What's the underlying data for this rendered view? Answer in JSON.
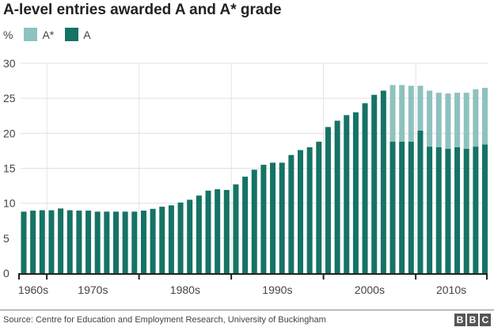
{
  "header": {
    "title": "A-level entries awarded A and A* grade"
  },
  "legend": {
    "unit": "%",
    "items": [
      {
        "label": "A*",
        "color": "#8ec2be"
      },
      {
        "label": "A",
        "color": "#157365"
      }
    ]
  },
  "footer": {
    "source": "Source: Centre for Education and Employment Research, University of Buckingham",
    "logo": [
      "B",
      "B",
      "C"
    ]
  },
  "chart_data": {
    "type": "bar",
    "stacked": true,
    "title": "A-level entries awarded A and A* grade",
    "ylabel": "%",
    "ylim": [
      0,
      30
    ],
    "yticks": [
      0,
      5,
      10,
      15,
      20,
      25,
      30
    ],
    "grid": true,
    "legend_position": "top-left",
    "x": [
      1967,
      1968,
      1969,
      1970,
      1971,
      1972,
      1973,
      1974,
      1975,
      1976,
      1977,
      1978,
      1979,
      1980,
      1981,
      1982,
      1983,
      1984,
      1985,
      1986,
      1987,
      1988,
      1989,
      1990,
      1991,
      1992,
      1993,
      1994,
      1995,
      1996,
      1997,
      1998,
      1999,
      2000,
      2001,
      2002,
      2003,
      2004,
      2005,
      2006,
      2007,
      2008,
      2009,
      2010,
      2011,
      2012,
      2013,
      2014,
      2015,
      2016,
      2017
    ],
    "decade_labels": [
      "1960s",
      "1970s",
      "1980s",
      "1990s",
      "2000s",
      "2010s"
    ],
    "series": [
      {
        "name": "A",
        "color": "#157365",
        "values": [
          8.8,
          8.95,
          9.0,
          9.0,
          9.25,
          9.0,
          8.95,
          8.95,
          8.8,
          8.8,
          8.8,
          8.8,
          8.8,
          8.95,
          9.2,
          9.5,
          9.7,
          10.1,
          10.5,
          11.1,
          11.8,
          12.0,
          11.9,
          12.7,
          13.8,
          14.8,
          15.5,
          15.8,
          15.8,
          16.9,
          17.6,
          18.0,
          18.8,
          20.9,
          21.8,
          22.6,
          23.0,
          24.3,
          25.5,
          26.1,
          18.8,
          18.8,
          18.8,
          20.4,
          18.1,
          18.0,
          17.8,
          18.0,
          17.8,
          18.1,
          18.4
        ]
      },
      {
        "name": "A*",
        "color": "#8ec2be",
        "values": [
          0,
          0,
          0,
          0,
          0,
          0,
          0,
          0,
          0,
          0,
          0,
          0,
          0,
          0,
          0,
          0,
          0,
          0,
          0,
          0,
          0,
          0,
          0,
          0,
          0,
          0,
          0,
          0,
          0,
          0,
          0,
          0,
          0,
          0,
          0,
          0,
          0,
          0,
          0,
          0,
          8.1,
          8.1,
          8.0,
          6.4,
          8.0,
          7.8,
          7.9,
          7.8,
          8.0,
          8.2,
          8.1
        ]
      }
    ]
  }
}
